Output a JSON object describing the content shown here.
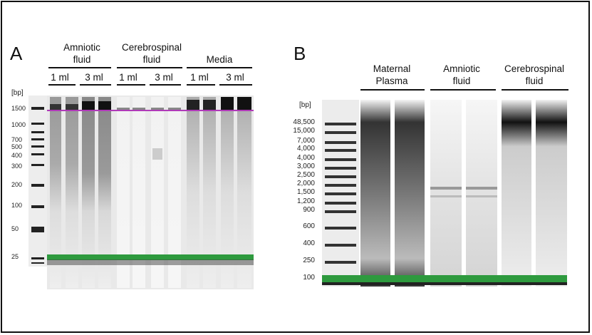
{
  "panelA": {
    "letter": "A",
    "groups": [
      {
        "label": "Amniotic\nfluid",
        "volumes": [
          "1 ml",
          "3 ml"
        ]
      },
      {
        "label": "Cerebrospinal\nfluid",
        "volumes": [
          "1 ml",
          "3 ml"
        ]
      },
      {
        "label": "Media",
        "volumes": [
          "1 ml",
          "3 ml"
        ]
      }
    ],
    "unit": "[bp]",
    "ladder": [
      "1500",
      "1000",
      "700",
      "500",
      "400",
      "300",
      "200",
      "100",
      "50",
      "25"
    ],
    "colors": {
      "upper_marker": "#b03ab8",
      "lower_marker": "#2e9a3e"
    }
  },
  "panelB": {
    "letter": "B",
    "groups": [
      {
        "label": "Maternal\nPlasma"
      },
      {
        "label": "Amniotic\nfluid"
      },
      {
        "label": "Cerebrospinal\nfluid"
      }
    ],
    "unit": "[bp]",
    "ladder": [
      "48,500",
      "15,000",
      "7,000",
      "4,000",
      "4,000",
      "3,000",
      "2,500",
      "2,000",
      "1,500",
      "1,200",
      "900",
      "600",
      "400",
      "250",
      "100"
    ],
    "colors": {
      "lower_marker": "#2e9a3e"
    }
  }
}
